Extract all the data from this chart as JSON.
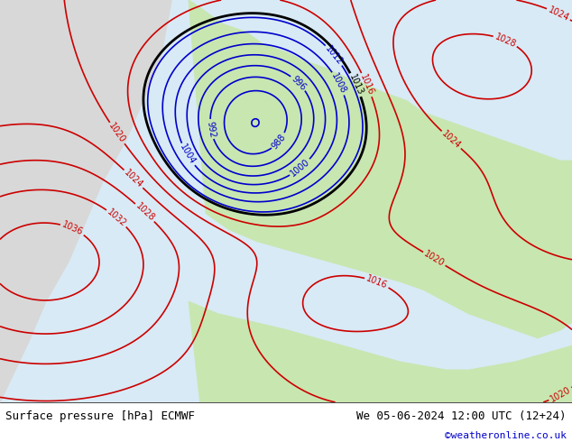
{
  "title_left": "Surface pressure [hPa] ECMWF",
  "title_right": "We 05-06-2024 12:00 UTC (12+24)",
  "copyright": "©weatheronline.co.uk",
  "bg_ocean": "#d8eaf5",
  "bg_land_europe": "#c8e6b0",
  "bg_land_atlantic": "#e8e8e8",
  "contour_low_color": "#0000cc",
  "contour_high_color": "#cc0000",
  "contour_1013_color": "#000000",
  "footer_bg": "#ffffff",
  "footer_text_color": "#000000",
  "copyright_color": "#0000cc"
}
